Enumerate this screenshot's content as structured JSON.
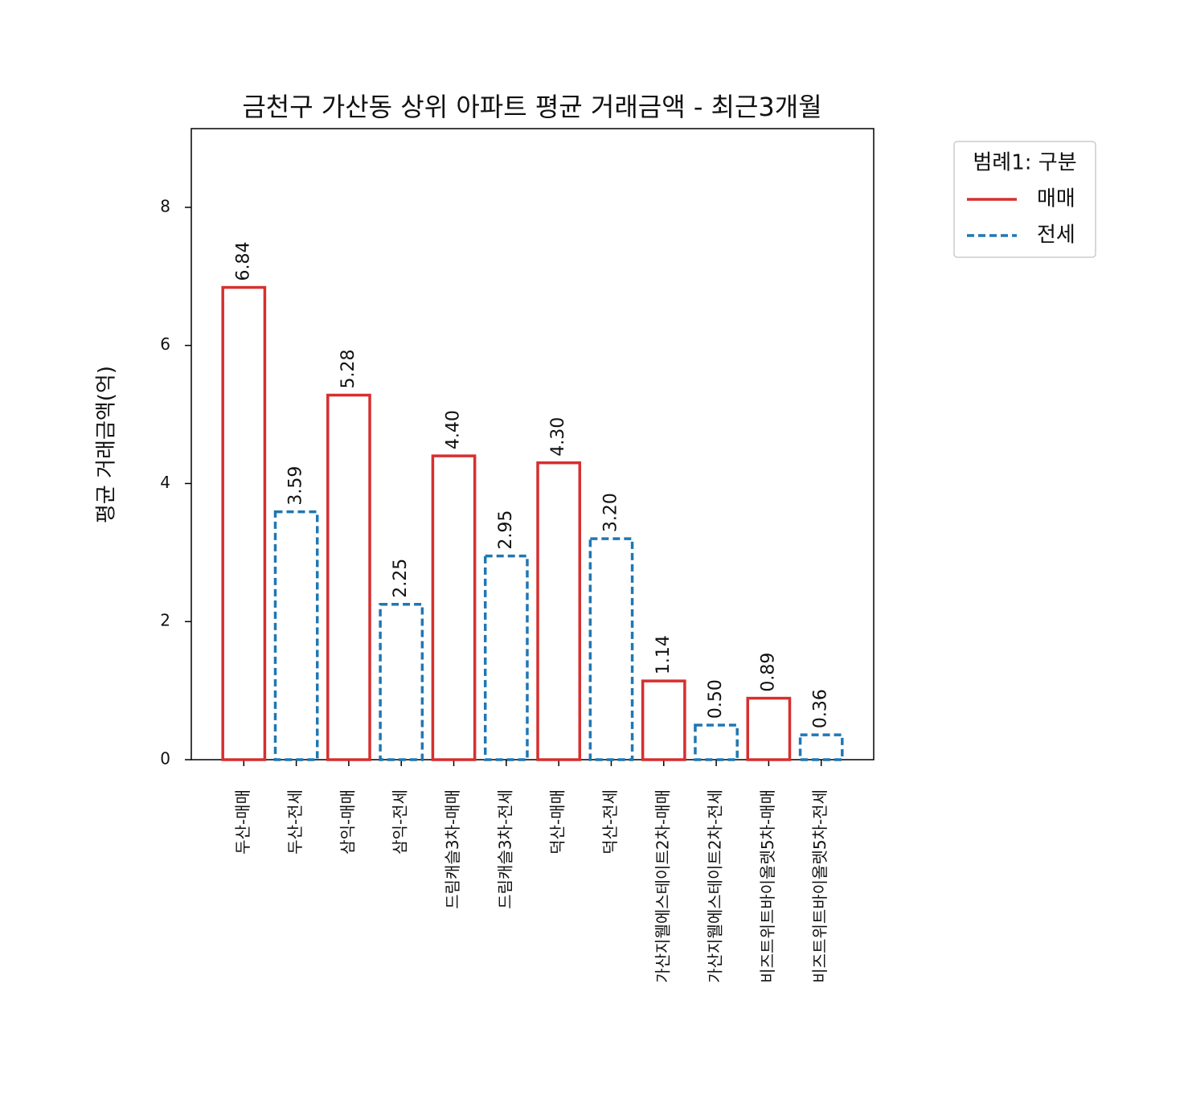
{
  "chart_data": {
    "type": "bar",
    "title": "금천구 가산동 상위 아파트 평균 거래금액 - 최근3개월",
    "y_label": "평균 거래금액(억)",
    "categories": [
      "두산-매매",
      "두산-전세",
      "삼익-매매",
      "삼익-전세",
      "드림캐슬3차-매매",
      "드림캐슬3차-전세",
      "덕산-매매",
      "덕산-전세",
      "가산지웰에스테이트2차-매매",
      "가산지웰에스테이트2차-전세",
      "비즈트위트바이올렛5차-매매",
      "비즈트위트바이올렛5차-전세"
    ],
    "series": [
      {
        "name": "매매",
        "color": "#d62f2f",
        "dashed": false,
        "values": [
          6.84,
          null,
          5.28,
          null,
          4.4,
          null,
          4.3,
          null,
          1.14,
          null,
          0.89,
          null
        ],
        "value_labels": [
          "6.84",
          null,
          "5.28",
          null,
          "4.40",
          null,
          "4.30",
          null,
          "1.14",
          null,
          "0.89",
          null
        ]
      },
      {
        "name": "전세",
        "color": "#1f77b4",
        "dashed": true,
        "values": [
          null,
          3.59,
          null,
          2.25,
          null,
          2.95,
          null,
          3.2,
          null,
          0.5,
          null,
          0.36
        ],
        "value_labels": [
          null,
          "3.59",
          null,
          "2.25",
          null,
          "2.95",
          null,
          "3.20",
          null,
          "0.50",
          null,
          "0.36"
        ]
      }
    ],
    "ylim": [
      0,
      9.14
    ],
    "yticks": [
      0,
      2,
      4,
      6,
      8
    ],
    "grid": false,
    "legend": {
      "title": "범례1: 구분",
      "loc": "outside upper right"
    }
  }
}
